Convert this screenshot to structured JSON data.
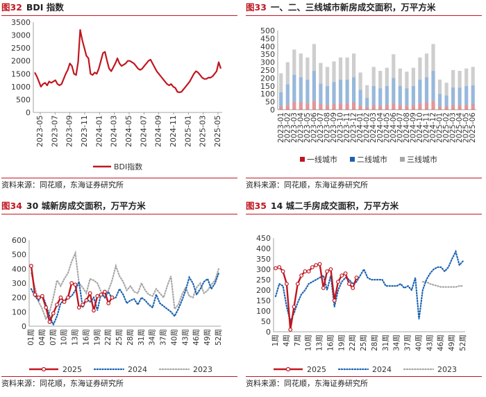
{
  "panels": [
    {
      "figure": "图32",
      "title": "BDI 指数",
      "source": "资料来源：同花顺，东海证券研究所"
    },
    {
      "figure": "图33",
      "title": "一、二、三线城市新房成交面积，万平方米",
      "source": "资料来源：同花顺，东海证券研究所"
    },
    {
      "figure": "图34",
      "title": "30 城新房成交面积，万平方米",
      "source": "资料来源：同花顺，东海证券研究所"
    },
    {
      "figure": "图35",
      "title": "14 城二手房成交面积，万平方米",
      "source": "资料来源：同花顺，东海证券研究所"
    }
  ],
  "chart_data": [
    {
      "type": "line",
      "title": "BDI 指数",
      "xlabel": "",
      "ylabel": "",
      "ylim": [
        0,
        3500
      ],
      "yticks": [
        0,
        500,
        1000,
        1500,
        2000,
        2500,
        3000,
        3500
      ],
      "xtick_labels": [
        "2023-05",
        "2023-07",
        "2023-09",
        "2023-11",
        "2024-01",
        "2024-03",
        "2024-05",
        "2024-07",
        "2024-09",
        "2024-11",
        "2025-01",
        "2025-03",
        "2025-05"
      ],
      "legend": "bottom",
      "grid": false,
      "series": [
        {
          "name": "BDI指数",
          "color": "#c0161f",
          "values": [
            1550,
            1400,
            1200,
            1000,
            1100,
            1150,
            1050,
            1200,
            1150,
            1200,
            1250,
            1100,
            1050,
            1100,
            1300,
            1500,
            1650,
            1900,
            1800,
            1500,
            1450,
            1950,
            3200,
            2800,
            2500,
            2200,
            2100,
            1500,
            1450,
            1550,
            1500,
            1700,
            2000,
            2300,
            2350,
            2000,
            1700,
            1600,
            1750,
            1900,
            2100,
            1900,
            1800,
            1850,
            1900,
            2000,
            2000,
            1950,
            1900,
            1800,
            1700,
            1650,
            1700,
            1800,
            1900,
            2000,
            2050,
            1900,
            1750,
            1600,
            1500,
            1400,
            1300,
            1200,
            1100,
            1050,
            1100,
            1000,
            950,
            800,
            780,
            800,
            900,
            1000,
            1100,
            1200,
            1350,
            1500,
            1600,
            1550,
            1450,
            1350,
            1300,
            1300,
            1350,
            1350,
            1400,
            1500,
            1600,
            1950,
            1700
          ]
        }
      ]
    },
    {
      "type": "bar",
      "stacked": true,
      "title": "一、二、三线城市新房成交面积，万平方米",
      "xlabel": "",
      "ylabel": "",
      "ylim": [
        0,
        500
      ],
      "yticks": [
        0,
        50,
        100,
        150,
        200,
        250,
        300,
        350,
        400,
        450,
        500
      ],
      "xtick_labels": [
        "2023-01",
        "2023-02",
        "2023-03",
        "2023-04",
        "2023-05",
        "2023-06",
        "2023-07",
        "2023-08",
        "2023-09",
        "2023-10",
        "2023-11",
        "2023-12",
        "2024-01",
        "2024-02",
        "2024-03",
        "2024-04",
        "2024-05",
        "2024-06",
        "2024-07",
        "2024-08",
        "2024-09",
        "2024-10",
        "2024-11",
        "2024-12",
        "2025-01",
        "2025-02",
        "2025-03",
        "2025-04",
        "2025-05",
        "2025-06"
      ],
      "legend": "bottom",
      "grid": false,
      "series": [
        {
          "name": "一线城市",
          "color": "#c0161f",
          "values": [
            20,
            30,
            50,
            45,
            40,
            55,
            35,
            30,
            35,
            40,
            40,
            45,
            25,
            15,
            30,
            25,
            30,
            40,
            30,
            25,
            30,
            40,
            45,
            55,
            20,
            20,
            30,
            30,
            30,
            35
          ]
        },
        {
          "name": "二线城市",
          "color": "#1a62b0",
          "values": [
            90,
            130,
            170,
            160,
            150,
            190,
            130,
            120,
            140,
            150,
            150,
            160,
            100,
            60,
            120,
            110,
            120,
            160,
            120,
            110,
            120,
            150,
            160,
            190,
            80,
            70,
            110,
            110,
            120,
            120
          ]
        },
        {
          "name": "三线城市",
          "color": "#a6a6a6",
          "values": [
            120,
            140,
            160,
            150,
            140,
            170,
            130,
            120,
            130,
            140,
            140,
            150,
            110,
            80,
            120,
            110,
            115,
            150,
            110,
            105,
            115,
            140,
            150,
            170,
            90,
            80,
            110,
            105,
            110,
            115
          ]
        }
      ]
    },
    {
      "type": "line",
      "title": "30 城新房成交面积，万平方米",
      "xlabel": "",
      "ylabel": "",
      "ylim": [
        0,
        600
      ],
      "yticks": [
        0,
        100,
        200,
        300,
        400,
        500,
        600
      ],
      "xtick_labels": [
        "01周",
        "04周",
        "07周",
        "10周",
        "13周",
        "16周",
        "19周",
        "22周",
        "25周",
        "28周",
        "31周",
        "34周",
        "37周",
        "40周",
        "43周",
        "46周",
        "49周",
        "52周"
      ],
      "x_count": 52,
      "legend": "bottom",
      "grid": false,
      "series": [
        {
          "name": "2025",
          "color": "#c0161f",
          "style": "solid-marker",
          "values": [
            420,
            220,
            200,
            210,
            130,
            30,
            90,
            150,
            200,
            170,
            200,
            300,
            290,
            130,
            150,
            180,
            230,
            110,
            210,
            220,
            240,
            160,
            200
          ]
        },
        {
          "name": "2024",
          "color": "#1a62b0",
          "style": "dotted",
          "values": [
            260,
            210,
            180,
            220,
            150,
            70,
            10,
            70,
            160,
            180,
            200,
            210,
            250,
            310,
            130,
            190,
            170,
            200,
            110,
            230,
            200,
            240,
            190,
            200,
            260,
            220,
            160,
            180,
            190,
            150,
            200,
            180,
            150,
            130,
            220,
            160,
            140,
            120,
            100,
            70,
            120,
            180,
            250,
            340,
            300,
            220,
            260,
            310,
            330,
            260,
            300,
            370
          ]
        },
        {
          "name": "2023",
          "color": "#a6a6a6",
          "style": "dotted",
          "values": [
            370,
            270,
            170,
            120,
            50,
            100,
            200,
            320,
            280,
            330,
            370,
            450,
            510,
            300,
            270,
            230,
            330,
            320,
            300,
            240,
            200,
            250,
            320,
            420,
            350,
            310,
            250,
            280,
            240,
            230,
            300,
            250,
            220,
            210,
            260,
            230,
            200,
            280,
            350,
            120,
            150,
            220,
            270,
            210,
            200,
            270,
            300,
            230,
            250,
            290,
            320,
            400
          ]
        }
      ]
    },
    {
      "type": "line",
      "title": "14 城二手房成交面积，万平方米",
      "xlabel": "",
      "ylabel": "",
      "ylim": [
        0,
        450
      ],
      "yticks": [
        0,
        50,
        100,
        150,
        200,
        250,
        300,
        350,
        400,
        450
      ],
      "xtick_labels": [
        "1周",
        "4周",
        "7周",
        "10周",
        "13周",
        "16周",
        "19周",
        "22周",
        "25周",
        "28周",
        "31周",
        "34周",
        "37周",
        "40周",
        "43周",
        "46周",
        "49周",
        "52周"
      ],
      "x_count": 52,
      "legend": "bottom",
      "grid": false,
      "series": [
        {
          "name": "2025",
          "color": "#c0161f",
          "style": "solid-marker",
          "values": [
            305,
            310,
            290,
            230,
            10,
            120,
            230,
            270,
            290,
            290,
            310,
            320,
            325,
            210,
            290,
            300,
            150,
            240,
            270,
            280,
            230,
            210,
            260
          ]
        },
        {
          "name": "2024",
          "color": "#1a62b0",
          "style": "dotted",
          "values": [
            170,
            230,
            220,
            120,
            50,
            90,
            140,
            180,
            200,
            230,
            240,
            250,
            260,
            270,
            200,
            270,
            120,
            200,
            240,
            260,
            250,
            230,
            240,
            270,
            300,
            260,
            250,
            250,
            250,
            250,
            220,
            220,
            220,
            220,
            230,
            210,
            220,
            200,
            260,
            60,
            200,
            250,
            280,
            300,
            310,
            310,
            290,
            310,
            350,
            385,
            320,
            340
          ]
        },
        {
          "name": "2023",
          "color": "#a6a6a6",
          "style": "dotted",
          "values": [
            null,
            null,
            null,
            null,
            null,
            null,
            null,
            null,
            null,
            null,
            null,
            null,
            null,
            null,
            null,
            null,
            null,
            null,
            null,
            null,
            null,
            null,
            null,
            null,
            null,
            null,
            null,
            null,
            null,
            null,
            null,
            null,
            null,
            null,
            null,
            null,
            null,
            null,
            null,
            null,
            240,
            240,
            230,
            225,
            220,
            215,
            215,
            215,
            215,
            215,
            220,
            220
          ]
        }
      ]
    }
  ]
}
